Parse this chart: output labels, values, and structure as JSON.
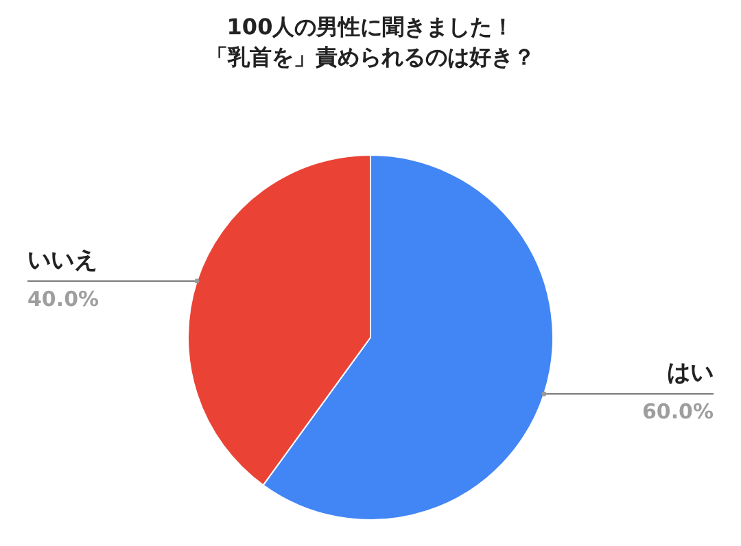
{
  "chart_data": {
    "type": "pie",
    "title": [
      "100人の男性に聞きました！",
      "「乳首を」責められるのは好き？"
    ],
    "categories": [
      "はい",
      "いいえ"
    ],
    "values": [
      60,
      40
    ],
    "colors": [
      "#4285f4",
      "#ea4335"
    ],
    "value_labels": [
      "60.0%",
      "40.0%"
    ],
    "legend": false
  }
}
